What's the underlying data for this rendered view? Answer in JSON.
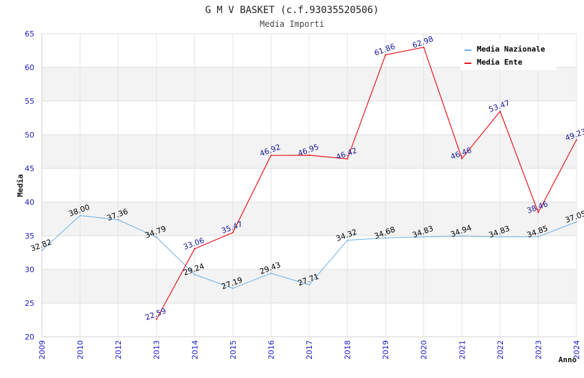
{
  "chart_data": {
    "type": "line",
    "title": "G M V BASKET (c.f.93035520506)",
    "subtitle": "Media Importi",
    "xlabel": "Anno",
    "ylabel": "Media",
    "ylim": [
      20,
      65
    ],
    "yticks": [
      20,
      25,
      30,
      35,
      40,
      45,
      50,
      55,
      60,
      65
    ],
    "categories": [
      "2009",
      "2010",
      "2012",
      "2013",
      "2014",
      "2015",
      "2016",
      "2017",
      "2018",
      "2019",
      "2020",
      "2021",
      "2022",
      "2023",
      "2024"
    ],
    "grid": true,
    "legend_position": "top-right",
    "series": [
      {
        "name": "Media Nazionale",
        "color": "#6aaee6",
        "label_color": "#000000",
        "values": [
          32.82,
          38.0,
          37.36,
          34.79,
          29.24,
          27.19,
          29.43,
          27.71,
          34.32,
          34.68,
          34.83,
          34.94,
          34.83,
          34.85,
          37.05
        ],
        "labels": [
          "32.82",
          "38.00",
          "37.36",
          "34.79",
          "29.24",
          "27.19",
          "29.43",
          "27.71",
          "34.32",
          "34.68",
          "34.83",
          "34.94",
          "34.83",
          "34.85",
          "37.05"
        ]
      },
      {
        "name": "Media Ente",
        "color": "#e8121a",
        "label_color": "#1a1a99",
        "values": [
          null,
          null,
          null,
          22.59,
          33.06,
          35.47,
          46.92,
          46.95,
          46.42,
          61.86,
          62.98,
          46.46,
          53.47,
          38.46,
          49.23
        ],
        "labels": [
          null,
          null,
          null,
          "22.59",
          "33.06",
          "35.47",
          "46.92",
          "46.95",
          "46.42",
          "61.86",
          "62.98",
          "46.46",
          "53.47",
          "38.46",
          "49.23"
        ]
      }
    ]
  }
}
